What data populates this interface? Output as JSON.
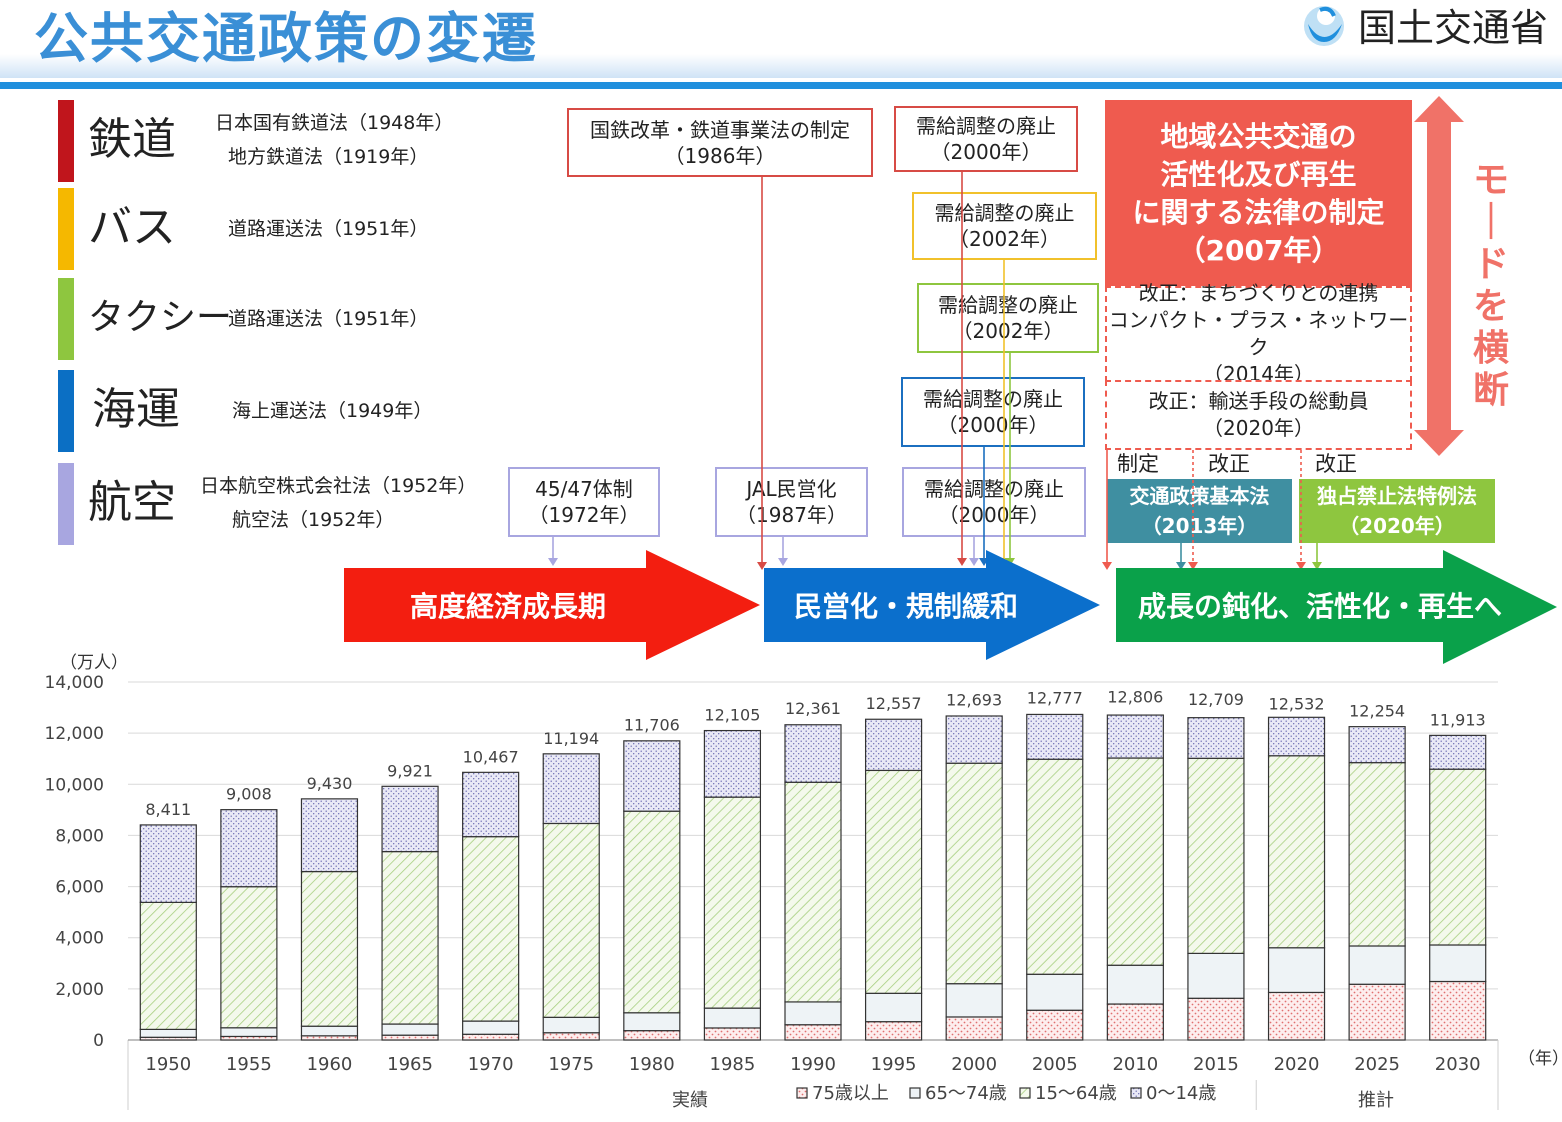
{
  "header": {
    "title": "公共交通政策の変遷",
    "org": "国土交通省"
  },
  "modes": [
    {
      "name": "鉄道",
      "color": "#c0151c",
      "laws": [
        "日本国有鉄道法（1948年）",
        "地方鉄道法（1919年）"
      ]
    },
    {
      "name": "バス",
      "color": "#f5b800",
      "laws": [
        "道路運送法（1951年）"
      ]
    },
    {
      "name": "タクシー",
      "color": "#8ec63f",
      "laws": [
        "道路運送法（1951年）"
      ]
    },
    {
      "name": "海運",
      "color": "#0b6fc4",
      "laws": [
        "海上運送法（1949年）"
      ]
    },
    {
      "name": "航空",
      "color": "#a8a6e0",
      "laws": [
        "日本航空株式会社法（1952年）",
        "航空法（1952年）"
      ]
    }
  ],
  "events": {
    "kokutetsu": [
      "国鉄改革・鉄道事業法の制定",
      "（1986年）"
    ],
    "jukyu_rail": [
      "需給調整の廃止",
      "（2000年）"
    ],
    "jukyu_bus": [
      "需給調整の廃止",
      "（2002年）"
    ],
    "jukyu_taxi": [
      "需給調整の廃止",
      "（2002年）"
    ],
    "jukyu_sea": [
      "需給調整の廃止",
      "（2000年）"
    ],
    "jukyu_air": [
      "需給調整の廃止",
      "（2000年）"
    ],
    "taisei4547": [
      "45/47体制",
      "（1972年）"
    ],
    "jal": [
      "JAL民営化",
      "（1987年）"
    ],
    "chiiki": [
      "地域公共交通の",
      "活性化及び再生",
      "に関する法律の制定",
      "（2007年）"
    ],
    "kaisei2014": [
      "改正：まちづくりとの連携",
      "コンパクト・プラス・ネットワーク",
      "（2014年）"
    ],
    "kaisei2020": [
      "改正：輸送手段の総動員",
      "（2020年）"
    ],
    "seitei_label": "制定",
    "kaisei_label1": "改正",
    "kaisei_label2": "改正",
    "kihonho": [
      "交通政策基本法",
      "（2013年）"
    ],
    "dokusen": [
      "独占禁止法特例法",
      "（2020年）"
    ],
    "mode_oudan": "モードを横断"
  },
  "phases": [
    {
      "label": "高度経済成長期",
      "color": "#f31e10"
    },
    {
      "label": "民営化・規制緩和",
      "color": "#0b6fcc"
    },
    {
      "label": "成長の鈍化、活性化・再生へ",
      "color": "#0aa14a"
    }
  ],
  "chart_data": {
    "type": "bar",
    "stacked": true,
    "unit_label": "（万人）",
    "year_unit": "（年）",
    "categories": [
      "1950",
      "1955",
      "1960",
      "1965",
      "1970",
      "1975",
      "1980",
      "1985",
      "1990",
      "1995",
      "2000",
      "2005",
      "2010",
      "2015",
      "2020",
      "2025",
      "2030"
    ],
    "totals": [
      8411,
      9008,
      9430,
      9921,
      10467,
      11194,
      11706,
      12105,
      12361,
      12557,
      12693,
      12777,
      12806,
      12709,
      12532,
      12254,
      11913
    ],
    "total_labels": [
      "8,411",
      "9,008",
      "9,430",
      "9,921",
      "10,467",
      "11,194",
      "11,706",
      "12,105",
      "12,361",
      "12,557",
      "12,693",
      "12,777",
      "12,806",
      "12,709",
      "12,532",
      "12,254",
      "11,913"
    ],
    "series": [
      {
        "name": "75歳以上",
        "values": [
          106,
          139,
          164,
          189,
          224,
          284,
          366,
          471,
          597,
          717,
          901,
          1164,
          1407,
          1632,
          1860,
          2180,
          2288
        ]
      },
      {
        "name": "65～74歳",
        "values": [
          309,
          339,
          376,
          435,
          516,
          603,
          699,
          776,
          892,
          1109,
          1301,
          1407,
          1517,
          1755,
          1747,
          1497,
          1428
        ]
      },
      {
        "name": "15～64歳",
        "values": [
          4966,
          5517,
          6047,
          6744,
          7212,
          7581,
          7883,
          8251,
          8590,
          8716,
          8622,
          8409,
          8103,
          7629,
          7509,
          7170,
          6875
        ]
      },
      {
        "name": "0～14歳",
        "values": [
          3030,
          3013,
          2843,
          2553,
          2515,
          2723,
          2751,
          2603,
          2249,
          2001,
          1847,
          1752,
          1680,
          1589,
          1503,
          1407,
          1322
        ]
      }
    ],
    "ylim": [
      0,
      14000
    ],
    "yticks": [
      "0",
      "2,000",
      "4,000",
      "6,000",
      "8,000",
      "10,000",
      "12,000",
      "14,000"
    ],
    "group_labels": [
      "実績",
      "推計"
    ]
  }
}
